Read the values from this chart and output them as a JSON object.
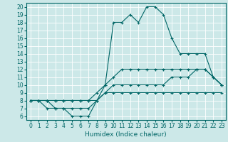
{
  "xlabel": "Humidex (Indice chaleur)",
  "xlim": [
    -0.5,
    23.5
  ],
  "ylim": [
    5.5,
    20.5
  ],
  "xticks": [
    0,
    1,
    2,
    3,
    4,
    5,
    6,
    7,
    8,
    9,
    10,
    11,
    12,
    13,
    14,
    15,
    16,
    17,
    18,
    19,
    20,
    21,
    22,
    23
  ],
  "yticks": [
    6,
    7,
    8,
    9,
    10,
    11,
    12,
    13,
    14,
    15,
    16,
    17,
    18,
    19,
    20
  ],
  "bg_color": "#cce8e8",
  "grid_color": "#ffffff",
  "line_color": "#006666",
  "line1_x": [
    0,
    1,
    2,
    3,
    4,
    5,
    6,
    7,
    8,
    9,
    10,
    11,
    12,
    13,
    14,
    15,
    16,
    17,
    18,
    19,
    20,
    21,
    22,
    23
  ],
  "line1_y": [
    8,
    8,
    8,
    7,
    7,
    6,
    6,
    6,
    8,
    10,
    18,
    18,
    19,
    18,
    20,
    20,
    19,
    16,
    14,
    14,
    14,
    14,
    11,
    10
  ],
  "line2_x": [
    0,
    1,
    2,
    3,
    4,
    5,
    6,
    7,
    8,
    9,
    10,
    11,
    12,
    13,
    14,
    15,
    16,
    17,
    18,
    19,
    20,
    21,
    22,
    23
  ],
  "line2_y": [
    8,
    8,
    7,
    7,
    7,
    7,
    7,
    7,
    8,
    9,
    10,
    10,
    10,
    10,
    10,
    10,
    10,
    11,
    11,
    11,
    12,
    12,
    11,
    10
  ],
  "line3_x": [
    0,
    1,
    2,
    3,
    4,
    5,
    6,
    7,
    8,
    9,
    10,
    11,
    12,
    13,
    14,
    15,
    16,
    17,
    18,
    19,
    20,
    21,
    22,
    23
  ],
  "line3_y": [
    8,
    8,
    8,
    8,
    8,
    8,
    8,
    8,
    8,
    9,
    9,
    9,
    9,
    9,
    9,
    9,
    9,
    9,
    9,
    9,
    9,
    9,
    9,
    9
  ],
  "line4_x": [
    0,
    1,
    2,
    3,
    4,
    5,
    6,
    7,
    8,
    9,
    10,
    11,
    12,
    13,
    14,
    15,
    16,
    17,
    18,
    19,
    20,
    21,
    22,
    23
  ],
  "line4_y": [
    8,
    8,
    8,
    8,
    8,
    8,
    8,
    8,
    9,
    10,
    11,
    12,
    12,
    12,
    12,
    12,
    12,
    12,
    12,
    12,
    12,
    12,
    11,
    10
  ],
  "tick_fontsize": 5.5,
  "label_fontsize": 6.5
}
